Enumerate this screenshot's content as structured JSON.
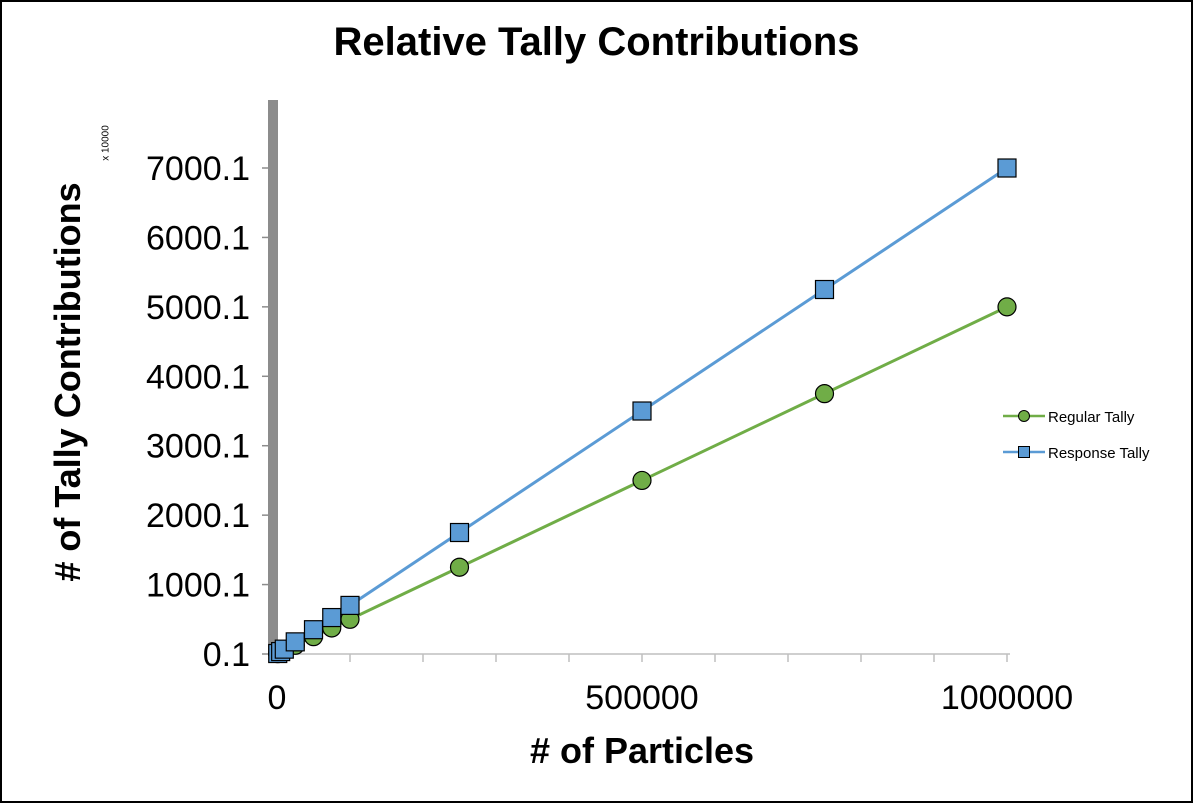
{
  "chart_data": {
    "type": "line",
    "title": "Relative Tally Contributions",
    "xlabel": "# of Particles",
    "ylabel": "# of Tally Contributions",
    "y_multiplier_label": "x 10000",
    "xlim": [
      0,
      1000000
    ],
    "ylim": [
      0.1,
      7000.1
    ],
    "x_tick_labels": [
      "0",
      "500000",
      "1000000"
    ],
    "x_tick_values": [
      0,
      500000,
      1000000
    ],
    "x_minor_ticks": [
      100000,
      200000,
      300000,
      400000,
      600000,
      700000,
      800000,
      900000
    ],
    "y_tick_labels": [
      "0.1",
      "1000.1",
      "2000.1",
      "3000.1",
      "4000.1",
      "5000.1",
      "6000.1",
      "7000.1"
    ],
    "y_tick_values": [
      0.1,
      1000.1,
      2000.1,
      3000.1,
      4000.1,
      5000.1,
      6000.1,
      7000.1
    ],
    "grid": false,
    "legend_position": "right",
    "x": [
      1000,
      5000,
      10000,
      25000,
      50000,
      75000,
      100000,
      250000,
      500000,
      750000,
      1000000
    ],
    "series": [
      {
        "name": "Regular Tally",
        "color": "#70AD47",
        "marker": "circle",
        "values": [
          5,
          25,
          50,
          125,
          250,
          375,
          500,
          1250,
          2500,
          3750,
          5000
        ]
      },
      {
        "name": "Response Tally",
        "color": "#5B9BD5",
        "marker": "square",
        "values": [
          7,
          35,
          70,
          175,
          350,
          525,
          700,
          1750,
          3500,
          5250,
          7000
        ]
      }
    ]
  }
}
